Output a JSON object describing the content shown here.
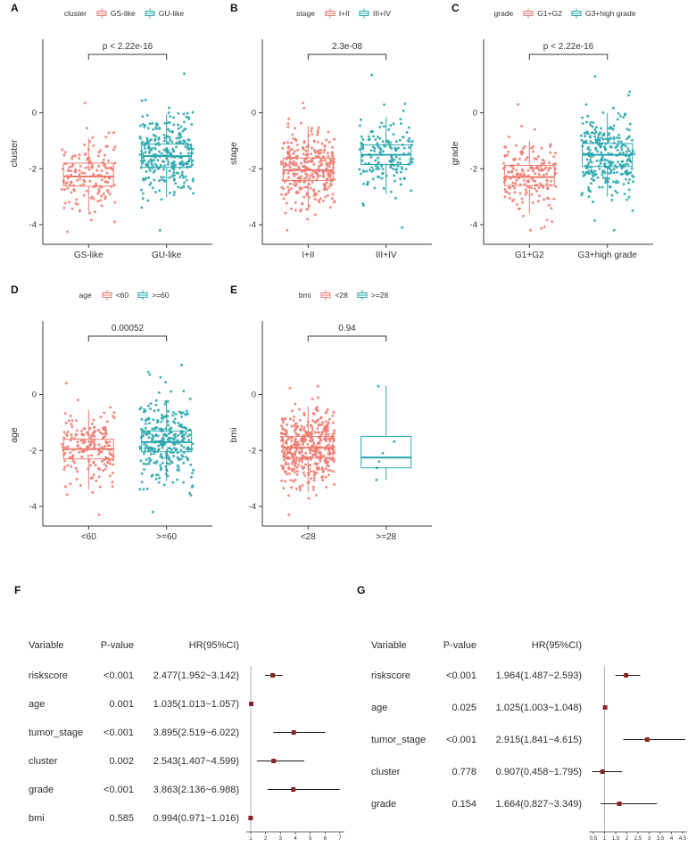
{
  "colors": {
    "salmon": "#EE7A70",
    "teal": "#2AA7AD",
    "forest_marker": "#8B2323",
    "axis": "#3a3a3a",
    "text": "#333333",
    "reference_line": "#b5b5b5"
  },
  "chart_data": [
    {
      "id": "A",
      "panel_label": "A",
      "type": "boxplot-jitter",
      "legend_title": "cluster",
      "ylabel": "cluster",
      "p_label": "p < 2.22e-16",
      "ylim": [
        -4.7,
        1.8
      ],
      "yticks": [
        0,
        -2,
        -4
      ],
      "groups": [
        {
          "label": "GS-like",
          "color": "#EE7A70",
          "box": {
            "low": -3.55,
            "q1": -2.62,
            "median": -2.28,
            "q3": -1.8,
            "high": -0.92
          },
          "points": {
            "n": 150,
            "mean": -2.2,
            "sd": 0.68,
            "min": -4.25,
            "max": 0.35
          }
        },
        {
          "label": "GU-like",
          "color": "#2AA7AD",
          "box": {
            "low": -3.02,
            "q1": -1.95,
            "median": -1.55,
            "q3": -1.12,
            "high": -0.05
          },
          "points": {
            "n": 280,
            "mean": -1.55,
            "sd": 0.78,
            "min": -4.2,
            "max": 1.4
          }
        }
      ]
    },
    {
      "id": "B",
      "panel_label": "B",
      "type": "boxplot-jitter",
      "legend_title": "stage",
      "ylabel": "stage",
      "p_label": "2.3e-08",
      "ylim": [
        -4.7,
        1.8
      ],
      "yticks": [
        0,
        -2,
        -4
      ],
      "groups": [
        {
          "label": "I+II",
          "color": "#EE7A70",
          "box": {
            "low": -3.5,
            "q1": -2.42,
            "median": -2.05,
            "q3": -1.62,
            "high": -0.45
          },
          "points": {
            "n": 300,
            "mean": -2.0,
            "sd": 0.72,
            "min": -4.2,
            "max": 0.35
          }
        },
        {
          "label": "III+IV",
          "color": "#2AA7AD",
          "box": {
            "low": -2.9,
            "q1": -1.85,
            "median": -1.5,
            "q3": -1.15,
            "high": -0.15
          },
          "points": {
            "n": 160,
            "mean": -1.5,
            "sd": 0.7,
            "min": -4.1,
            "max": 1.35
          }
        }
      ]
    },
    {
      "id": "C",
      "panel_label": "C",
      "type": "boxplot-jitter",
      "legend_title": "grade",
      "ylabel": "grade",
      "p_label": "p < 2.22e-16",
      "ylim": [
        -4.7,
        1.8
      ],
      "yticks": [
        0,
        -2,
        -4
      ],
      "groups": [
        {
          "label": "G1+G2",
          "color": "#EE7A70",
          "box": {
            "low": -3.6,
            "q1": -2.6,
            "median": -2.3,
            "q3": -1.88,
            "high": -1.0
          },
          "points": {
            "n": 175,
            "mean": -2.25,
            "sd": 0.62,
            "min": -4.2,
            "max": 0.3
          }
        },
        {
          "label": "G3+high grade",
          "color": "#2AA7AD",
          "box": {
            "low": -3.0,
            "q1": -1.92,
            "median": -1.5,
            "q3": -1.1,
            "high": 0.0
          },
          "points": {
            "n": 285,
            "mean": -1.5,
            "sd": 0.75,
            "min": -4.2,
            "max": 1.3
          }
        }
      ]
    },
    {
      "id": "D",
      "panel_label": "D",
      "type": "boxplot-jitter",
      "legend_title": "age",
      "ylabel": "age",
      "p_label": "0.00052",
      "ylim": [
        -4.7,
        1.8
      ],
      "yticks": [
        0,
        -2,
        -4
      ],
      "groups": [
        {
          "label": "<60",
          "color": "#EE7A70",
          "box": {
            "low": -3.4,
            "q1": -2.3,
            "median": -1.95,
            "q3": -1.6,
            "high": -0.55
          },
          "points": {
            "n": 185,
            "mean": -1.95,
            "sd": 0.68,
            "min": -4.3,
            "max": 0.4
          }
        },
        {
          "label": ">=60",
          "color": "#2AA7AD",
          "box": {
            "low": -3.1,
            "q1": -2.05,
            "median": -1.7,
            "q3": -1.3,
            "high": -0.2
          },
          "points": {
            "n": 290,
            "mean": -1.68,
            "sd": 0.75,
            "min": -4.2,
            "max": 1.05
          }
        }
      ]
    },
    {
      "id": "E",
      "panel_label": "E",
      "type": "boxplot-jitter",
      "legend_title": "bmi",
      "ylabel": "bmi",
      "p_label": "0.94",
      "ylim": [
        -4.7,
        1.8
      ],
      "yticks": [
        0,
        -2,
        -4
      ],
      "groups": [
        {
          "label": "<28",
          "color": "#EE7A70",
          "box": {
            "low": -3.5,
            "q1": -2.25,
            "median": -1.9,
            "q3": -1.5,
            "high": -0.42
          },
          "points": {
            "n": 420,
            "mean": -1.9,
            "sd": 0.7,
            "min": -4.3,
            "max": 0.3
          }
        },
        {
          "label": ">=28",
          "color": "#2AA7AD",
          "box": {
            "low": -3.05,
            "q1": -2.62,
            "median": -2.25,
            "q3": -1.5,
            "high": 0.3
          },
          "points": {
            "values": [
              0.3,
              -1.68,
              -2.1,
              -2.4,
              -2.62,
              -3.05
            ]
          }
        }
      ]
    },
    {
      "id": "F",
      "panel_label": "F",
      "type": "forest",
      "columns": [
        "Variable",
        "P-value",
        "HR(95%CI)"
      ],
      "marker_color": "#8B2323",
      "xlim": [
        0.7,
        7.3
      ],
      "xticks": [
        1,
        2,
        3,
        4,
        5,
        6,
        7
      ],
      "ref_line": 1,
      "rows": [
        {
          "variable": "riskscore",
          "p": "<0.001",
          "hr_text": "2.477(1.952~3.142)",
          "hr": 2.477,
          "lo": 1.952,
          "hi": 3.142
        },
        {
          "variable": "age",
          "p": "0.001",
          "hr_text": "1.035(1.013~1.057)",
          "hr": 1.035,
          "lo": 1.013,
          "hi": 1.057
        },
        {
          "variable": "tumor_stage",
          "p": "<0.001",
          "hr_text": "3.895(2.519~6.022)",
          "hr": 3.895,
          "lo": 2.519,
          "hi": 6.022
        },
        {
          "variable": "cluster",
          "p": "0.002",
          "hr_text": "2.543(1.407~4.599)",
          "hr": 2.543,
          "lo": 1.407,
          "hi": 4.599
        },
        {
          "variable": "grade",
          "p": "<0.001",
          "hr_text": "3.863(2.136~6.988)",
          "hr": 3.863,
          "lo": 2.136,
          "hi": 6.988
        },
        {
          "variable": "bmi",
          "p": "0.585",
          "hr_text": "0.994(0.971~1.016)",
          "hr": 0.994,
          "lo": 0.971,
          "hi": 1.016
        }
      ]
    },
    {
      "id": "G",
      "panel_label": "G",
      "type": "forest",
      "columns": [
        "Variable",
        "P-value",
        "HR(95%CI)"
      ],
      "marker_color": "#8B2323",
      "xlim": [
        0.3,
        4.7
      ],
      "xticks": [
        0.5,
        1,
        1.5,
        2,
        2.5,
        3,
        3.5,
        4,
        4.5
      ],
      "ref_line": 1,
      "rows": [
        {
          "variable": "riskscore",
          "p": "<0.001",
          "hr_text": "1.964(1.487~2.593)",
          "hr": 1.964,
          "lo": 1.487,
          "hi": 2.593
        },
        {
          "variable": "age",
          "p": "0.025",
          "hr_text": "1.025(1.003~1.048)",
          "hr": 1.025,
          "lo": 1.003,
          "hi": 1.048
        },
        {
          "variable": "tumor_stage",
          "p": "<0.001",
          "hr_text": "2.915(1.841~4.615)",
          "hr": 2.915,
          "lo": 1.841,
          "hi": 4.615
        },
        {
          "variable": "cluster",
          "p": "0.778",
          "hr_text": "0.907(0.458~1.795)",
          "hr": 0.907,
          "lo": 0.458,
          "hi": 1.795
        },
        {
          "variable": "grade",
          "p": "0.154",
          "hr_text": "1.664(0.827~3.349)",
          "hr": 1.664,
          "lo": 0.827,
          "hi": 3.349
        }
      ]
    }
  ]
}
